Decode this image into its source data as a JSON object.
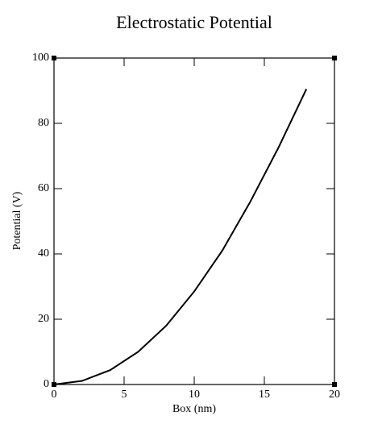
{
  "chart_data": {
    "type": "line",
    "title": "Electrostatic Potential",
    "x_label": "Box (nm)",
    "y_label": "Potential (V)",
    "x": [
      0,
      2,
      4,
      6,
      8,
      10,
      12,
      14,
      16,
      18
    ],
    "series": [
      {
        "color": "#000000",
        "values": [
          0,
          1.1,
          4.4,
          10,
          18,
          28.5,
          41,
          56,
          72.5,
          90.5
        ]
      }
    ],
    "xlim": [
      0,
      20
    ],
    "xticks": [
      0,
      5,
      10,
      15,
      20
    ],
    "ylim": [
      0,
      100
    ],
    "yticks": [
      0,
      20,
      40,
      60,
      80,
      100
    ],
    "grid": false
  }
}
